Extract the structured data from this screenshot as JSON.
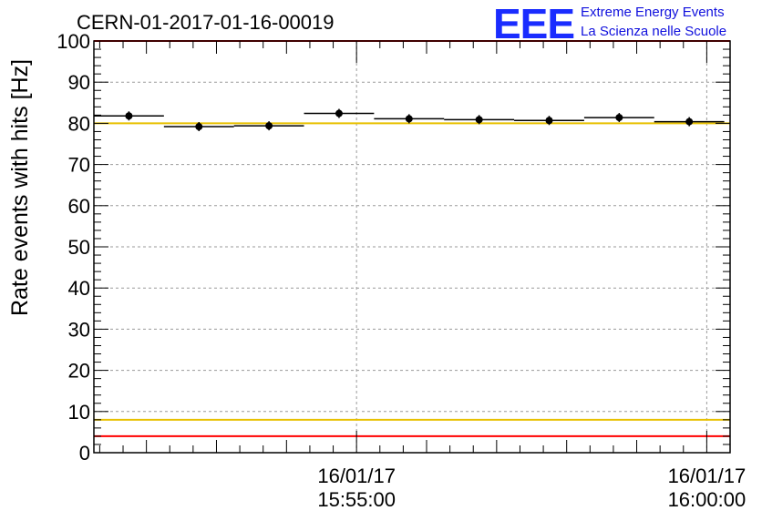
{
  "title": "CERN-01-2017-01-16-00019",
  "logo": {
    "mark": "EEE",
    "line1": "Extreme Energy Events",
    "line2": "La Scienza nelle Scuole"
  },
  "colors": {
    "frame": "#000000",
    "grid": "#9a9a9a",
    "red_line": "#ff0000",
    "yellow_line": "#e8c000",
    "points": "#000000",
    "logo": "#1a2cff"
  },
  "chart_data": {
    "type": "scatter",
    "title": "CERN-01-2017-01-16-00019",
    "xlabel": "",
    "ylabel": "Rate events with hits [Hz]",
    "x_unit": "time",
    "xlim": [
      "2017-01-16 15:51:15",
      "2017-01-16 16:00:20"
    ],
    "ylim": [
      0,
      100
    ],
    "yticks": [
      0,
      10,
      20,
      30,
      40,
      50,
      60,
      70,
      80,
      90,
      100
    ],
    "xtick_labels": [
      {
        "date": "16/01/17",
        "time": "15:55:00",
        "at": "2017-01-16 15:55:00"
      },
      {
        "date": "16/01/17",
        "time": "16:00:00",
        "at": "2017-01-16 16:00:00"
      }
    ],
    "grid": true,
    "points": [
      {
        "x": "2017-01-16 15:51:45",
        "x_start": "2017-01-16 15:51:15",
        "x_end": "2017-01-16 15:52:15",
        "y": 81.8
      },
      {
        "x": "2017-01-16 15:52:45",
        "x_start": "2017-01-16 15:52:15",
        "x_end": "2017-01-16 15:53:15",
        "y": 79.2
      },
      {
        "x": "2017-01-16 15:53:45",
        "x_start": "2017-01-16 15:53:15",
        "x_end": "2017-01-16 15:54:15",
        "y": 79.4
      },
      {
        "x": "2017-01-16 15:54:45",
        "x_start": "2017-01-16 15:54:15",
        "x_end": "2017-01-16 15:55:15",
        "y": 82.4
      },
      {
        "x": "2017-01-16 15:55:45",
        "x_start": "2017-01-16 15:55:15",
        "x_end": "2017-01-16 15:56:15",
        "y": 81.1
      },
      {
        "x": "2017-01-16 15:56:45",
        "x_start": "2017-01-16 15:56:15",
        "x_end": "2017-01-16 15:57:15",
        "y": 80.9
      },
      {
        "x": "2017-01-16 15:57:45",
        "x_start": "2017-01-16 15:57:15",
        "x_end": "2017-01-16 15:58:15",
        "y": 80.7
      },
      {
        "x": "2017-01-16 15:58:45",
        "x_start": "2017-01-16 15:58:15",
        "x_end": "2017-01-16 15:59:15",
        "y": 81.4
      },
      {
        "x": "2017-01-16 15:59:45",
        "x_start": "2017-01-16 15:59:15",
        "x_end": "2017-01-16 16:00:15",
        "y": 80.4
      }
    ],
    "reference_lines": [
      {
        "y": 100,
        "color": "#ff0000"
      },
      {
        "y": 80,
        "color": "#e8c000"
      },
      {
        "y": 8,
        "color": "#e8c000"
      },
      {
        "y": 4,
        "color": "#ff0000"
      }
    ]
  }
}
